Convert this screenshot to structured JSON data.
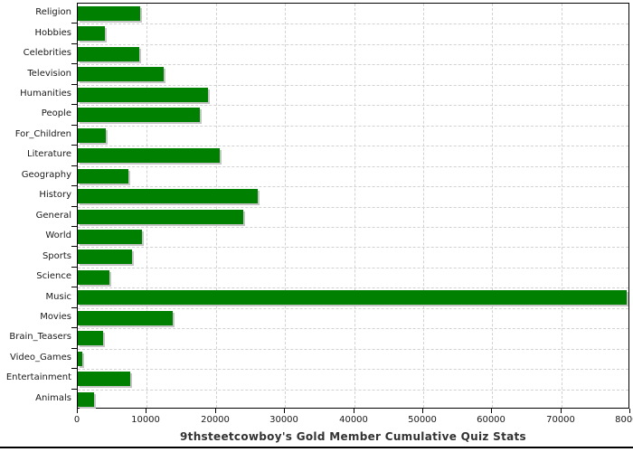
{
  "chart_data": {
    "type": "bar",
    "orientation": "horizontal",
    "title": "9thsteetcowboy's Gold Member Cumulative Quiz Stats",
    "xlabel": "",
    "ylabel": "",
    "categories": [
      "Religion",
      "Hobbies",
      "Celebrities",
      "Television",
      "Humanities",
      "People",
      "For_Children",
      "Literature",
      "Geography",
      "History",
      "General",
      "World",
      "Sports",
      "Science",
      "Music",
      "Movies",
      "Brain_Teasers",
      "Video_Games",
      "Entertainment",
      "Animals"
    ],
    "values": [
      9000,
      3900,
      8900,
      12400,
      18900,
      17700,
      4100,
      20500,
      7300,
      26100,
      24000,
      9300,
      7800,
      4600,
      79500,
      13700,
      3700,
      700,
      7600,
      2400
    ],
    "xlim": [
      0,
      80000
    ],
    "xticks": [
      0,
      10000,
      20000,
      30000,
      40000,
      50000,
      60000,
      70000,
      80000
    ],
    "xtick_labels": [
      "0",
      "10000",
      "20000",
      "30000",
      "40000",
      "50000",
      "60000",
      "70000",
      "80000"
    ],
    "grid": true,
    "legend": "none",
    "bar_color": "#008000",
    "shadow_color": "#c5c5c5",
    "grid_color": "#d2d2d2",
    "axis_color": "#000000",
    "label_color": "#1a1a1a",
    "title_color": "#333333"
  }
}
